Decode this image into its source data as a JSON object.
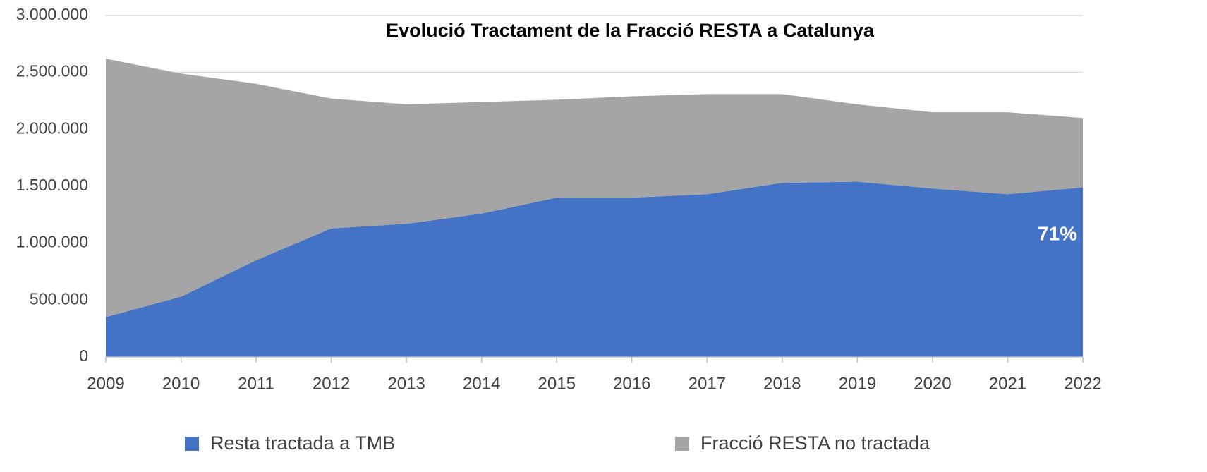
{
  "chart_data": {
    "type": "stacked_area",
    "title": "Evolució Tractament de la Fracció RESTA a Catalunya",
    "categories": [
      "2009",
      "2010",
      "2011",
      "2012",
      "2013",
      "2014",
      "2015",
      "2016",
      "2017",
      "2018",
      "2019",
      "2020",
      "2021",
      "2022"
    ],
    "series": [
      {
        "name": "Resta tractada a TMB",
        "color": "#4472c4",
        "values": [
          350000,
          530000,
          850000,
          1130000,
          1170000,
          1260000,
          1400000,
          1400000,
          1430000,
          1530000,
          1540000,
          1480000,
          1430000,
          1490000
        ]
      },
      {
        "name": "Fracció RESTA no tractada",
        "color": "#a5a5a5",
        "values": [
          2270000,
          1960000,
          1550000,
          1140000,
          1050000,
          980000,
          860000,
          890000,
          880000,
          780000,
          680000,
          670000,
          720000,
          610000
        ]
      }
    ],
    "ylim": [
      0,
      3000000
    ],
    "yticks": [
      0,
      {
        "value": 500000,
        "label": "500.000"
      },
      {
        "value": 1000000,
        "label": "1.000.000"
      },
      {
        "value": 1500000,
        "label": "1.500.000"
      },
      {
        "value": 2000000,
        "label": "2.000.000"
      },
      {
        "value": 2500000,
        "label": "2.500.000"
      },
      {
        "value": 3000000,
        "label": "3.000.000"
      }
    ],
    "grid": true,
    "legend": "bottom",
    "annotations": [
      {
        "text": "71%"
      }
    ]
  }
}
